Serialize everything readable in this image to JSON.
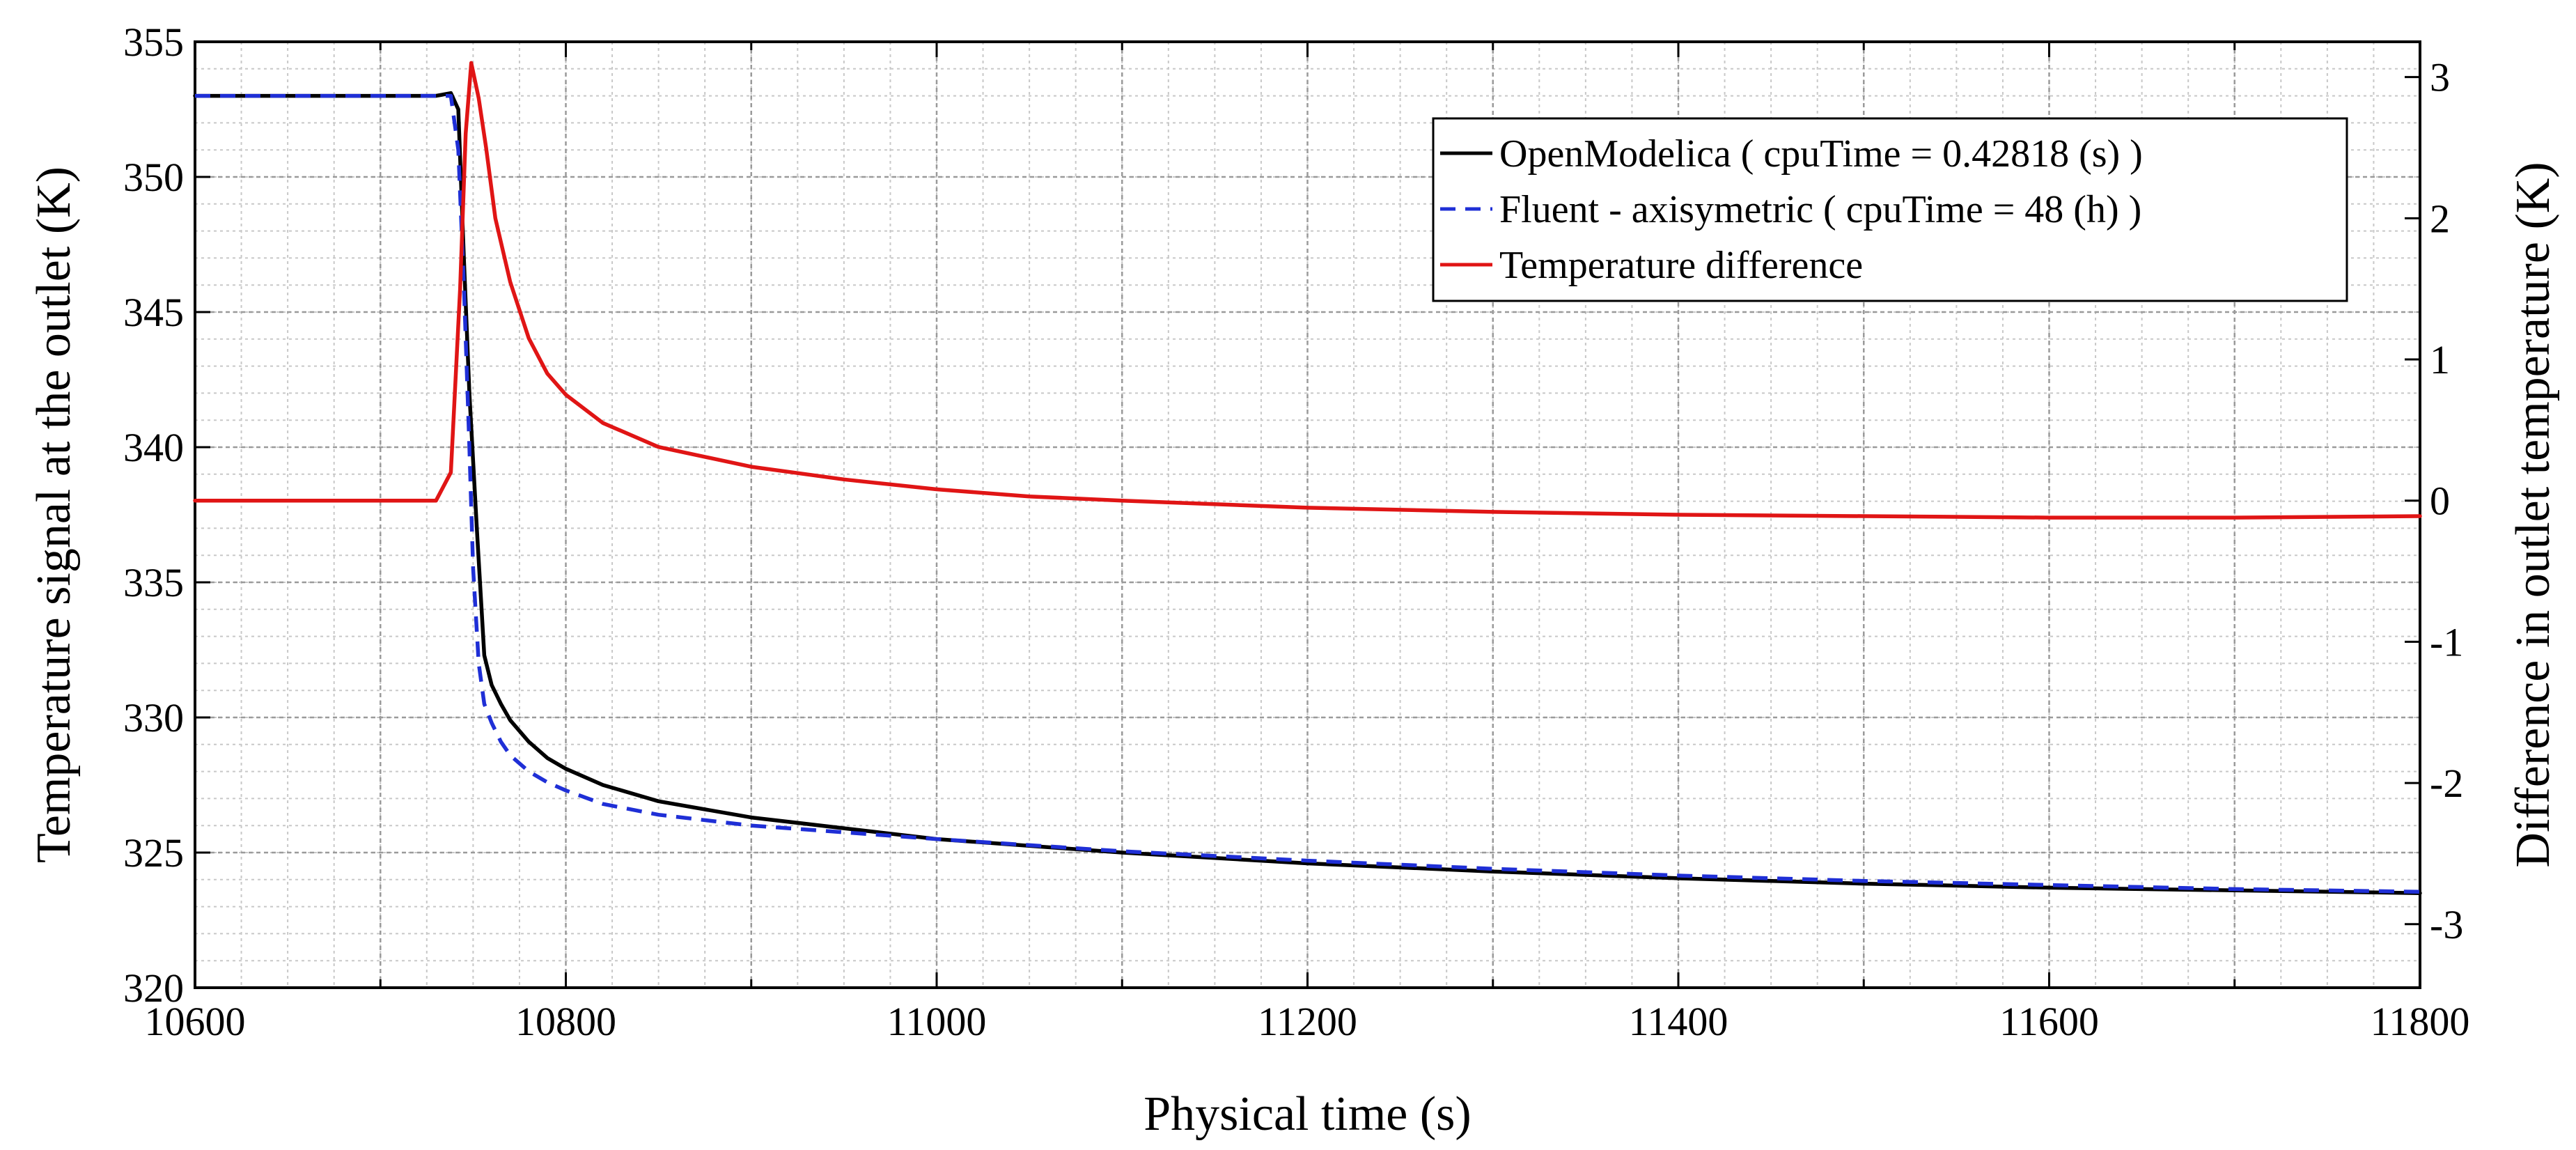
{
  "chart_data": {
    "type": "line",
    "title": "",
    "xlabel": "Physical time (s)",
    "ylabel_left": "Temperature signal at the outlet (K)",
    "ylabel_right": "Difference in outlet temperature (K)",
    "xlim": [
      10600,
      11800
    ],
    "ylim_left": [
      320,
      355
    ],
    "ylim_right": [
      -3.45,
      3.25
    ],
    "x_ticks": [
      10600,
      10800,
      11000,
      11200,
      11400,
      11600,
      11800
    ],
    "y_left_ticks": [
      320,
      325,
      330,
      335,
      340,
      345,
      350,
      355
    ],
    "y_right_ticks": [
      -3,
      -2,
      -1,
      0,
      1,
      2,
      3
    ],
    "grid": true,
    "minor_grid": true,
    "legend_position": "top-right",
    "series": [
      {
        "name": "OpenModelica ( cpuTime = 0.42818 (s) )",
        "axis": "left",
        "color": "#000000",
        "style": "solid",
        "x": [
          10600,
          10730,
          10738,
          10742,
          10745,
          10748,
          10752,
          10756,
          10760,
          10765,
          10770,
          10780,
          10790,
          10800,
          10820,
          10850,
          10900,
          10950,
          11000,
          11100,
          11200,
          11300,
          11400,
          11500,
          11600,
          11700,
          11800
        ],
        "y": [
          353,
          353,
          353.1,
          352.5,
          347,
          342,
          337,
          332.3,
          331.2,
          330.5,
          329.9,
          329.1,
          328.5,
          328.1,
          327.5,
          326.9,
          326.3,
          325.9,
          325.5,
          325,
          324.6,
          324.3,
          324.05,
          323.85,
          323.7,
          323.6,
          323.5
        ]
      },
      {
        "name": "Fluent - axisymetric ( cpuTime = 48 (h) )",
        "axis": "left",
        "color": "#1f2fd6",
        "style": "dashed",
        "x": [
          10600,
          10738,
          10742,
          10745,
          10748,
          10750,
          10753,
          10756,
          10760,
          10765,
          10770,
          10780,
          10790,
          10800,
          10820,
          10850,
          10900,
          10950,
          11000,
          11100,
          11200,
          11300,
          11400,
          11500,
          11600,
          11700,
          11800
        ],
        "y": [
          353,
          353,
          351,
          346,
          340,
          335.5,
          332,
          330.5,
          329.8,
          329.1,
          328.6,
          328,
          327.6,
          327.3,
          326.8,
          326.4,
          326.0,
          325.75,
          325.5,
          325.05,
          324.7,
          324.4,
          324.15,
          323.95,
          323.8,
          323.65,
          323.55
        ]
      },
      {
        "name": "Temperature difference",
        "axis": "right",
        "color": "#e01515",
        "style": "solid",
        "x": [
          10600,
          10730,
          10738,
          10743,
          10746,
          10749,
          10753,
          10757,
          10762,
          10770,
          10780,
          10790,
          10800,
          10820,
          10850,
          10900,
          10950,
          11000,
          11050,
          11100,
          11200,
          11300,
          11400,
          11500,
          11600,
          11700,
          11800
        ],
        "y": [
          0,
          0,
          0.2,
          1.5,
          2.6,
          3.1,
          2.85,
          2.5,
          2.0,
          1.55,
          1.15,
          0.9,
          0.75,
          0.55,
          0.38,
          0.24,
          0.15,
          0.08,
          0.03,
          0.0,
          -0.05,
          -0.08,
          -0.1,
          -0.11,
          -0.12,
          -0.12,
          -0.11
        ]
      }
    ]
  }
}
